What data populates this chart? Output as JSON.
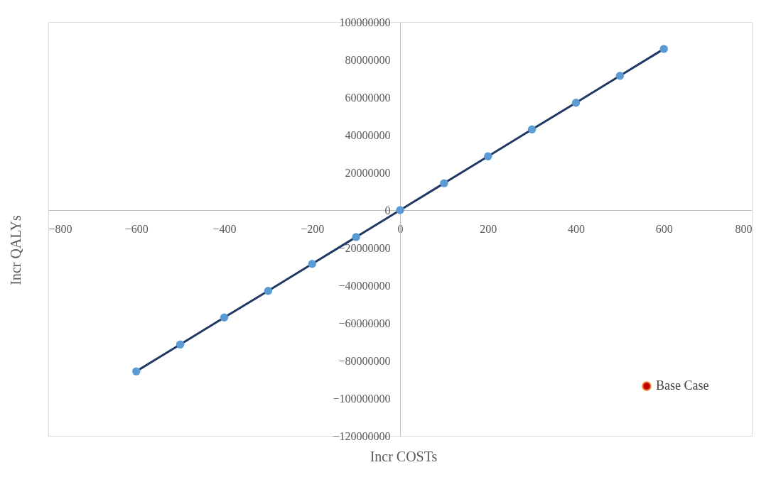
{
  "chart_data": {
    "type": "scatter",
    "xlabel": "Incr COSTs",
    "ylabel": "Incr QALYs",
    "xlim": [
      -800,
      800
    ],
    "xticks": [
      -800,
      -600,
      -400,
      -200,
      0,
      200,
      400,
      600,
      800
    ],
    "ylim": [
      -120000000,
      100000000
    ],
    "yticks": [
      -120000000,
      -100000000,
      -80000000,
      -60000000,
      -40000000,
      -20000000,
      0,
      20000000,
      40000000,
      60000000,
      80000000,
      100000000
    ],
    "grid": false,
    "legend": "bottom right",
    "series": [
      {
        "type": "line",
        "color": "#1f3864",
        "marker": "none",
        "line_style": "solid",
        "x": [
          -600,
          -500,
          -400,
          -300,
          -200,
          -100,
          0,
          100,
          200,
          300,
          400,
          500,
          600
        ],
        "values": [
          -85700000,
          -71400000,
          -57100000,
          -42900000,
          -28600000,
          -14300000,
          0,
          14300000,
          28600000,
          42900000,
          57100000,
          71400000,
          85700000
        ]
      },
      {
        "color": "#5b9bd5",
        "marker": "circle",
        "x": [
          -600,
          -500,
          -400,
          -300,
          -200,
          -100,
          0,
          100,
          200,
          300,
          400,
          500,
          600
        ],
        "values": [
          -85700000,
          -71400000,
          -57100000,
          -42900000,
          -28600000,
          -14300000,
          0,
          14300000,
          28600000,
          42900000,
          57100000,
          71400000,
          85700000
        ]
      },
      {
        "type": "scatter",
        "name": "Base Case",
        "color": "#c00000",
        "marker": "circle"
      }
    ]
  }
}
